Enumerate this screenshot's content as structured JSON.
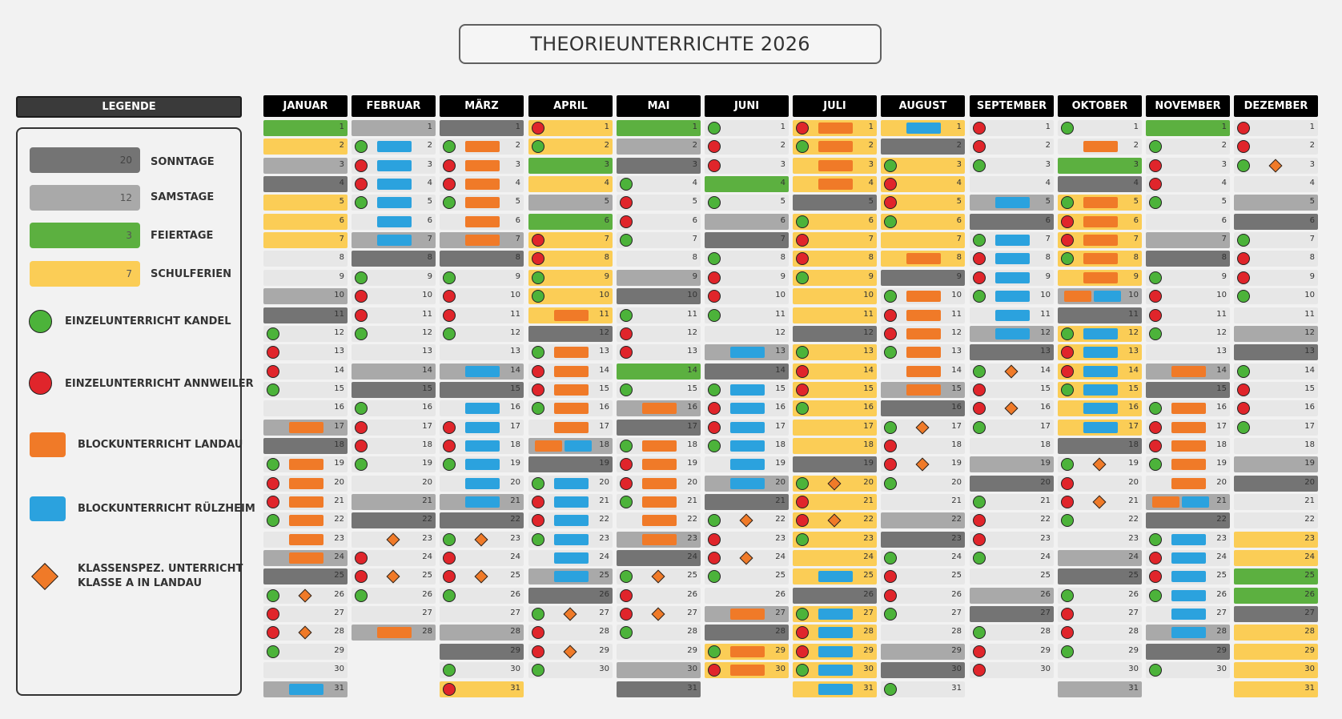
{
  "title": "THEORIEUNTERRICHTE 2026",
  "legend": {
    "header": "LEGENDE",
    "items": [
      {
        "key": "sonntage",
        "count": "20",
        "label": "SONNTAGE",
        "color": "#747474"
      },
      {
        "key": "samstage",
        "count": "12",
        "label": "SAMSTAGE",
        "color": "#a9a9a9"
      },
      {
        "key": "feiertage",
        "count": "3",
        "label": "FEIERTAGE",
        "color": "#5cb040"
      },
      {
        "key": "schulferien",
        "count": "7",
        "label": "SCHULFERIEN",
        "color": "#fbcd56"
      }
    ],
    "symbols": [
      {
        "key": "kandel",
        "label": "EINZELUNTERRICHT KANDEL",
        "color": "#4cb33a"
      },
      {
        "key": "annweiler",
        "label": "EINZELUNTERRICHT ANNWEILER",
        "color": "#e0252b"
      },
      {
        "key": "landau",
        "label": "BLOCKUNTERRICHT LANDAU",
        "color": "#f07a28"
      },
      {
        "key": "ruelzheim",
        "label": "BLOCKUNTERRICHT RÜLZHEIM",
        "color": "#2ba2de"
      },
      {
        "key": "klasse",
        "label1": "KLASSENSPEZ. UNTERRICHT",
        "label2": "KLASSE A IN LANDAU",
        "color": "#f07a28"
      }
    ]
  },
  "colors": {
    "n": "#e7e7e7",
    "so": "#747474",
    "sa": "#a9a9a9",
    "fe": "#5cb040",
    "sf": "#fbcd56",
    "green": "#4cb33a",
    "red": "#e0252b",
    "orange": "#f07a28",
    "blue": "#2ba2de"
  },
  "months": [
    {
      "name": "JANUAR",
      "days": [
        "fe",
        "sf",
        "sa",
        "so",
        "sf",
        "sf",
        "sf",
        "n",
        "n",
        "sa",
        "so",
        "n",
        "n",
        "n",
        "n",
        "n",
        "sa",
        "so",
        "n",
        "n",
        "n",
        "n",
        "n",
        "sa",
        "so",
        "n",
        "n",
        "n",
        "n",
        "n",
        "sa"
      ],
      "marks": {
        "12": "g",
        "13": "r",
        "14": "r",
        "15": "g",
        "17": "O",
        "18": "",
        "19": "gO",
        "20": "rO",
        "21": "rO",
        "22": "gO",
        "23": "O",
        "24": "O",
        "26": "gD",
        "27": "r",
        "28": "rD",
        "29": "g",
        "31": "B"
      }
    },
    {
      "name": "FEBRUAR",
      "days": [
        "sa",
        "n",
        "n",
        "n",
        "n",
        "n",
        "sa",
        "so",
        "n",
        "n",
        "n",
        "n",
        "n",
        "sa",
        "so",
        "n",
        "n",
        "n",
        "n",
        "n",
        "sa",
        "so",
        "n",
        "n",
        "n",
        "n",
        "n",
        "sa"
      ],
      "marks": {
        "2": "gB",
        "3": "rB",
        "4": "rB",
        "5": "gB",
        "6": "B",
        "7": "B",
        "9": "g",
        "10": "r",
        "11": "r",
        "12": "g",
        "16": "g",
        "17": "r",
        "18": "r",
        "19": "g",
        "23": "D",
        "24": "r",
        "25": "rD",
        "26": "g",
        "28": "O"
      }
    },
    {
      "name": "MÄRZ",
      "days": [
        "so",
        "n",
        "n",
        "n",
        "n",
        "n",
        "sa",
        "so",
        "n",
        "n",
        "n",
        "n",
        "n",
        "sa",
        "so",
        "n",
        "n",
        "n",
        "n",
        "n",
        "sa",
        "so",
        "n",
        "n",
        "n",
        "n",
        "n",
        "sa",
        "so",
        "n",
        "sf"
      ],
      "marks": {
        "2": "gO",
        "3": "rO",
        "4": "rO",
        "5": "gO",
        "6": "O",
        "7": "O",
        "9": "g",
        "10": "r",
        "11": "r",
        "12": "g",
        "14": "B",
        "16": "B",
        "17": "rB",
        "18": "rB",
        "19": "gB",
        "20": "B",
        "21": "B",
        "23": "gD",
        "24": "r",
        "25": "rD",
        "26": "g",
        "30": "g",
        "31": "r"
      }
    },
    {
      "name": "APRIL",
      "days": [
        "sf",
        "sf",
        "fe",
        "sf",
        "sa",
        "fe",
        "sf",
        "sf",
        "sf",
        "sf",
        "sf",
        "so",
        "n",
        "n",
        "n",
        "n",
        "n",
        "sa",
        "so",
        "n",
        "n",
        "n",
        "n",
        "n",
        "sa",
        "so",
        "n",
        "n",
        "n",
        "n"
      ],
      "marks": {
        "1": "r",
        "2": "g",
        "7": "r",
        "8": "r",
        "9": "g",
        "10": "g",
        "11": "O",
        "13": "gO",
        "14": "rO",
        "15": "rO",
        "16": "gO",
        "17": "O",
        "18": "OB",
        "20": "gB",
        "21": "rB",
        "22": "rB",
        "23": "gB",
        "24": "B",
        "25": "B",
        "27": "gD",
        "28": "r",
        "29": "rD",
        "30": "g"
      }
    },
    {
      "name": "MAI",
      "days": [
        "fe",
        "sa",
        "so",
        "n",
        "n",
        "n",
        "n",
        "n",
        "sa",
        "so",
        "n",
        "n",
        "n",
        "fe",
        "n",
        "sa",
        "so",
        "n",
        "n",
        "n",
        "n",
        "n",
        "sa",
        "so",
        "n",
        "n",
        "n",
        "n",
        "n",
        "sa",
        "so"
      ],
      "marks": {
        "4": "g",
        "5": "r",
        "6": "r",
        "7": "g",
        "11": "g",
        "12": "r",
        "13": "r",
        "15": "g",
        "16": "O",
        "18": "gO",
        "19": "rO",
        "20": "rO",
        "21": "gO",
        "22": "O",
        "23": "O",
        "25": "gD",
        "26": "r",
        "27": "rD",
        "28": "g"
      }
    },
    {
      "name": "JUNI",
      "days": [
        "n",
        "n",
        "n",
        "fe",
        "n",
        "sa",
        "so",
        "n",
        "n",
        "n",
        "n",
        "n",
        "sa",
        "so",
        "n",
        "n",
        "n",
        "n",
        "n",
        "sa",
        "so",
        "n",
        "n",
        "n",
        "n",
        "n",
        "sa",
        "so",
        "sf",
        "sf"
      ],
      "marks": {
        "1": "g",
        "2": "r",
        "3": "r",
        "5": "g",
        "8": "g",
        "9": "r",
        "10": "r",
        "11": "g",
        "13": "B",
        "15": "gB",
        "16": "rB",
        "17": "rB",
        "18": "gB",
        "19": "B",
        "20": "B",
        "22": "gD",
        "23": "r",
        "24": "rD",
        "25": "g",
        "27": "O",
        "29": "gO",
        "30": "rO"
      }
    },
    {
      "name": "JULI",
      "days": [
        "sf",
        "sf",
        "sf",
        "sf",
        "so",
        "sf",
        "sf",
        "sf",
        "sf",
        "sf",
        "sf",
        "so",
        "sf",
        "sf",
        "sf",
        "sf",
        "sf",
        "sf",
        "so",
        "sf",
        "sf",
        "sf",
        "sf",
        "sf",
        "sf",
        "so",
        "sf",
        "sf",
        "sf",
        "sf",
        "sf"
      ],
      "marks": {
        "1": "rO",
        "2": "gO",
        "3": "O",
        "4": "O",
        "6": "g",
        "7": "r",
        "8": "r",
        "9": "g",
        "13": "g",
        "14": "r",
        "15": "r",
        "16": "g",
        "20": "gD",
        "21": "r",
        "22": "rD",
        "23": "g",
        "25": "B",
        "27": "gB",
        "28": "rB",
        "29": "rB",
        "30": "gB",
        "31": "B"
      }
    },
    {
      "name": "AUGUST",
      "days": [
        "sf",
        "so",
        "sf",
        "sf",
        "sf",
        "sf",
        "sf",
        "sf",
        "so",
        "n",
        "n",
        "n",
        "n",
        "n",
        "sa",
        "so",
        "n",
        "n",
        "n",
        "n",
        "n",
        "sa",
        "so",
        "n",
        "n",
        "n",
        "n",
        "n",
        "sa",
        "so",
        "n"
      ],
      "marks": {
        "1": "B",
        "3": "g",
        "4": "r",
        "5": "r",
        "6": "g",
        "8": "O",
        "10": "gO",
        "11": "rO",
        "12": "rO",
        "13": "gO",
        "14": "O",
        "15": "O",
        "17": "gD",
        "18": "r",
        "19": "rD",
        "20": "g",
        "24": "g",
        "25": "r",
        "26": "r",
        "27": "g",
        "31": "g"
      }
    },
    {
      "name": "SEPTEMBER",
      "days": [
        "n",
        "n",
        "n",
        "n",
        "sa",
        "so",
        "n",
        "n",
        "n",
        "n",
        "n",
        "sa",
        "so",
        "n",
        "n",
        "n",
        "n",
        "n",
        "sa",
        "so",
        "n",
        "n",
        "n",
        "n",
        "n",
        "sa",
        "so",
        "n",
        "n",
        "n"
      ],
      "marks": {
        "1": "r",
        "2": "r",
        "3": "g",
        "5": "B",
        "7": "gB",
        "8": "rB",
        "9": "rB",
        "10": "gB",
        "11": "B",
        "12": "B",
        "14": "gD",
        "15": "r",
        "16": "rD",
        "17": "g",
        "21": "g",
        "22": "r",
        "23": "r",
        "24": "g",
        "28": "g",
        "29": "r",
        "30": "r"
      }
    },
    {
      "name": "OKTOBER",
      "days": [
        "n",
        "n",
        "fe",
        "so",
        "sf",
        "sf",
        "sf",
        "sf",
        "sf",
        "sa",
        "so",
        "sf",
        "sf",
        "sf",
        "sf",
        "sf",
        "sf",
        "so",
        "n",
        "n",
        "n",
        "n",
        "n",
        "sa",
        "so",
        "n",
        "n",
        "n",
        "n",
        "n",
        "sa"
      ],
      "marks": {
        "1": "g",
        "2": "O",
        "5": "gO",
        "6": "rO",
        "7": "rO",
        "8": "gO",
        "9": "O",
        "10": "OB",
        "12": "gB",
        "13": "rB",
        "14": "rB",
        "15": "gB",
        "16": "B",
        "17": "B",
        "19": "gD",
        "20": "r",
        "21": "rD",
        "22": "g",
        "26": "g",
        "27": "r",
        "28": "r",
        "29": "g"
      }
    },
    {
      "name": "NOVEMBER",
      "days": [
        "fe",
        "n",
        "n",
        "n",
        "n",
        "n",
        "sa",
        "so",
        "n",
        "n",
        "n",
        "n",
        "n",
        "sa",
        "so",
        "n",
        "n",
        "n",
        "n",
        "n",
        "sa",
        "so",
        "n",
        "n",
        "n",
        "n",
        "n",
        "sa",
        "so",
        "n"
      ],
      "marks": {
        "2": "g",
        "3": "r",
        "4": "r",
        "5": "g",
        "9": "g",
        "10": "r",
        "11": "r",
        "12": "g",
        "14": "O",
        "16": "gO",
        "17": "rO",
        "18": "rO",
        "19": "gO",
        "20": "O",
        "21": "OB",
        "23": "gB",
        "24": "rB",
        "25": "rB",
        "26": "gB",
        "27": "B",
        "28": "B",
        "30": "g"
      }
    },
    {
      "name": "DEZEMBER",
      "days": [
        "n",
        "n",
        "n",
        "n",
        "sa",
        "so",
        "n",
        "n",
        "n",
        "n",
        "n",
        "sa",
        "so",
        "n",
        "n",
        "n",
        "n",
        "n",
        "sa",
        "so",
        "n",
        "n",
        "sf",
        "sf",
        "fe",
        "fe",
        "so",
        "sf",
        "sf",
        "sf",
        "sf"
      ],
      "marks": {
        "1": "r",
        "2": "r",
        "3": "gD",
        "7": "g",
        "8": "r",
        "9": "r",
        "10": "g",
        "14": "g",
        "15": "r",
        "16": "r",
        "17": "g"
      }
    }
  ]
}
